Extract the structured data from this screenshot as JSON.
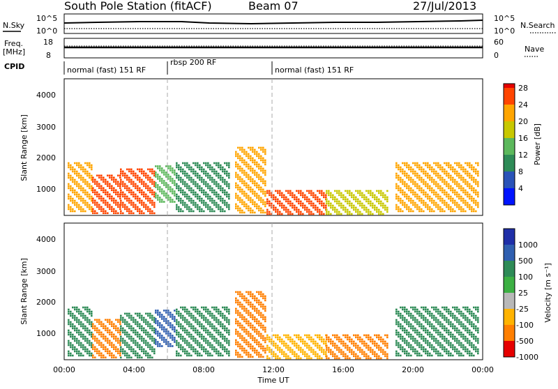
{
  "header": {
    "station": "South Pole Station (fitACF)",
    "beam": "Beam 07",
    "date": "27/Jul/2013"
  },
  "status_panels": {
    "nsky_label": "N.Sky",
    "nsearch_label": "N.Search",
    "freq_label_1": "Freq.",
    "freq_label_2": "[MHz]",
    "nave_label": "Nave",
    "cpid_label": "CPID",
    "noise_left_ticks": [
      "10^5",
      "10^0"
    ],
    "noise_right_ticks": [
      "10^5",
      "10^0"
    ],
    "freq_ticks": [
      "18",
      "8"
    ],
    "nave_ticks": [
      "60",
      "0"
    ]
  },
  "cpid_segments": [
    {
      "label": "normal (fast) 151 RF",
      "start_hour": 0,
      "end_hour": 6
    },
    {
      "label": "rbsp 200 RF",
      "start_hour": 6,
      "end_hour": 12
    },
    {
      "label": "normal (fast) 151 RF",
      "start_hour": 12,
      "end_hour": 24
    }
  ],
  "power_panel": {
    "ylabel": "Slant Range [km]",
    "yticks": [
      "1000",
      "2000",
      "3000",
      "4000"
    ],
    "colorbar_label": "Power [dB]",
    "colorbar_ticks": [
      "4",
      "8",
      "12",
      "16",
      "20",
      "24",
      "28"
    ],
    "colors": [
      "#0014ff",
      "#2a53b8",
      "#2e8b57",
      "#5cb85c",
      "#c8c800",
      "#ffa500",
      "#ff4500",
      "#e60000"
    ]
  },
  "velocity_panel": {
    "ylabel": "Slant Range [km]",
    "yticks": [
      "1000",
      "2000",
      "3000",
      "4000"
    ],
    "colorbar_label": "Velocity [m s⁻¹]",
    "colorbar_ticks": [
      "1000",
      "500",
      "100",
      "25",
      "-25",
      "-100",
      "-500",
      "-1000"
    ],
    "colors": [
      "#1f2fa8",
      "#2f5fb0",
      "#2e8b57",
      "#3cb043",
      "#b8b8b8",
      "#ffb300",
      "#ff7f00",
      "#e60000"
    ]
  },
  "x_axis": {
    "label": "Time UT",
    "ticks": [
      "00:00",
      "04:00",
      "08:00",
      "12:00",
      "16:00",
      "20:00",
      "00:00"
    ]
  },
  "chart_data": {
    "type": "heatmap",
    "title": "South Pole Station (fitACF)",
    "xlabel": "Time UT",
    "ylabel": "Slant Range [km]",
    "xlim_hours": [
      0,
      24
    ],
    "ylim_km": [
      180,
      4600
    ],
    "power_colorbar_db": [
      4,
      8,
      12,
      16,
      20,
      24,
      28
    ],
    "velocity_colorbar_ms": [
      1000,
      500,
      100,
      25,
      -25,
      -100,
      -500,
      -1000
    ],
    "scatter_regions": [
      {
        "t_start": 0.2,
        "t_end": 1.6,
        "range_low": 300,
        "range_high": 1900,
        "power_db": 22,
        "velocity_ms": 150
      },
      {
        "t_start": 1.6,
        "t_end": 3.2,
        "range_low": 250,
        "range_high": 1500,
        "power_db": 26,
        "velocity_ms": -120
      },
      {
        "t_start": 3.2,
        "t_end": 5.2,
        "range_low": 250,
        "range_high": 1700,
        "power_db": 26,
        "velocity_ms": 300
      },
      {
        "t_start": 5.2,
        "t_end": 6.4,
        "range_low": 600,
        "range_high": 1800,
        "power_db": 12,
        "velocity_ms": 500
      },
      {
        "t_start": 6.4,
        "t_end": 9.5,
        "range_low": 300,
        "range_high": 1900,
        "power_db": 10,
        "velocity_ms": 200
      },
      {
        "t_start": 9.8,
        "t_end": 11.6,
        "range_low": 300,
        "range_high": 2400,
        "power_db": 22,
        "velocity_ms": -150
      },
      {
        "t_start": 11.6,
        "t_end": 15.0,
        "range_low": 250,
        "range_high": 1000,
        "power_db": 24,
        "velocity_ms": -80
      },
      {
        "t_start": 15.0,
        "t_end": 18.5,
        "range_low": 250,
        "range_high": 1000,
        "power_db": 18,
        "velocity_ms": -300
      },
      {
        "t_start": 19.0,
        "t_end": 23.8,
        "range_low": 300,
        "range_high": 1900,
        "power_db": 20,
        "velocity_ms": 400
      }
    ]
  }
}
